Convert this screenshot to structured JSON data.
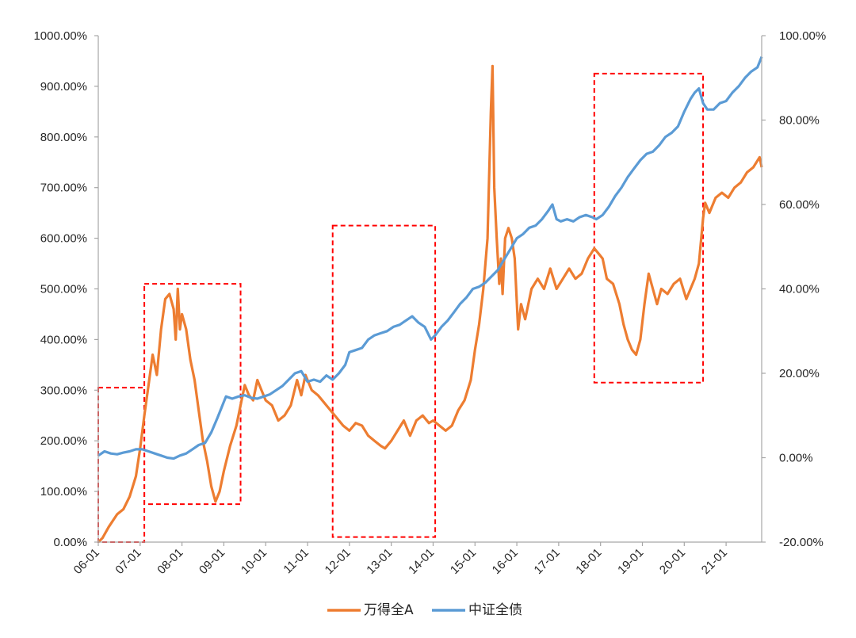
{
  "chart_data": {
    "type": "line",
    "x_tick_labels": [
      "06-01",
      "07-01",
      "08-01",
      "09-01",
      "10-01",
      "11-01",
      "12-01",
      "13-01",
      "14-01",
      "15-01",
      "16-01",
      "17-01",
      "18-01",
      "19-01",
      "20-01",
      "21-01"
    ],
    "y_left_tick_labels": [
      "0.00%",
      "100.00%",
      "200.00%",
      "300.00%",
      "400.00%",
      "500.00%",
      "600.00%",
      "700.00%",
      "800.00%",
      "900.00%",
      "1000.00%"
    ],
    "y_right_tick_labels": [
      "-20.00%",
      "0.00%",
      "20.00%",
      "40.00%",
      "60.00%",
      "80.00%",
      "100.00%"
    ],
    "y_left_range": [
      0,
      1000
    ],
    "y_right_range": [
      -20,
      100
    ],
    "x_range": [
      2006.0,
      2021.85
    ],
    "grid": false,
    "legend_position": "bottom-center",
    "series": [
      {
        "name": "万得全A",
        "axis": "left",
        "color": "#ED7D31",
        "points": [
          [
            2006.0,
            0
          ],
          [
            2006.1,
            8
          ],
          [
            2006.25,
            30
          ],
          [
            2006.45,
            55
          ],
          [
            2006.6,
            65
          ],
          [
            2006.75,
            90
          ],
          [
            2006.9,
            130
          ],
          [
            2007.0,
            185
          ],
          [
            2007.1,
            250
          ],
          [
            2007.2,
            310
          ],
          [
            2007.3,
            370
          ],
          [
            2007.4,
            330
          ],
          [
            2007.5,
            420
          ],
          [
            2007.6,
            480
          ],
          [
            2007.7,
            490
          ],
          [
            2007.8,
            460
          ],
          [
            2007.85,
            400
          ],
          [
            2007.9,
            500
          ],
          [
            2007.95,
            420
          ],
          [
            2008.0,
            450
          ],
          [
            2008.1,
            420
          ],
          [
            2008.2,
            360
          ],
          [
            2008.3,
            320
          ],
          [
            2008.4,
            260
          ],
          [
            2008.5,
            200
          ],
          [
            2008.6,
            160
          ],
          [
            2008.7,
            110
          ],
          [
            2008.8,
            80
          ],
          [
            2008.9,
            100
          ],
          [
            2009.0,
            140
          ],
          [
            2009.15,
            190
          ],
          [
            2009.3,
            230
          ],
          [
            2009.4,
            270
          ],
          [
            2009.5,
            310
          ],
          [
            2009.6,
            290
          ],
          [
            2009.7,
            280
          ],
          [
            2009.8,
            320
          ],
          [
            2009.9,
            300
          ],
          [
            2010.0,
            280
          ],
          [
            2010.15,
            270
          ],
          [
            2010.3,
            240
          ],
          [
            2010.45,
            250
          ],
          [
            2010.6,
            270
          ],
          [
            2010.75,
            320
          ],
          [
            2010.85,
            290
          ],
          [
            2010.95,
            330
          ],
          [
            2011.1,
            300
          ],
          [
            2011.25,
            290
          ],
          [
            2011.4,
            275
          ],
          [
            2011.55,
            260
          ],
          [
            2011.7,
            245
          ],
          [
            2011.85,
            230
          ],
          [
            2012.0,
            220
          ],
          [
            2012.15,
            235
          ],
          [
            2012.3,
            230
          ],
          [
            2012.45,
            210
          ],
          [
            2012.6,
            200
          ],
          [
            2012.75,
            190
          ],
          [
            2012.85,
            185
          ],
          [
            2013.0,
            200
          ],
          [
            2013.15,
            220
          ],
          [
            2013.3,
            240
          ],
          [
            2013.45,
            210
          ],
          [
            2013.6,
            240
          ],
          [
            2013.75,
            250
          ],
          [
            2013.9,
            235
          ],
          [
            2014.0,
            240
          ],
          [
            2014.15,
            230
          ],
          [
            2014.3,
            220
          ],
          [
            2014.45,
            230
          ],
          [
            2014.6,
            260
          ],
          [
            2014.75,
            280
          ],
          [
            2014.9,
            320
          ],
          [
            2015.0,
            380
          ],
          [
            2015.1,
            430
          ],
          [
            2015.2,
            500
          ],
          [
            2015.3,
            600
          ],
          [
            2015.38,
            850
          ],
          [
            2015.42,
            940
          ],
          [
            2015.46,
            700
          ],
          [
            2015.52,
            600
          ],
          [
            2015.58,
            510
          ],
          [
            2015.62,
            560
          ],
          [
            2015.66,
            490
          ],
          [
            2015.72,
            600
          ],
          [
            2015.8,
            620
          ],
          [
            2015.88,
            600
          ],
          [
            2015.95,
            560
          ],
          [
            2016.03,
            420
          ],
          [
            2016.1,
            470
          ],
          [
            2016.2,
            440
          ],
          [
            2016.35,
            500
          ],
          [
            2016.5,
            520
          ],
          [
            2016.65,
            500
          ],
          [
            2016.8,
            540
          ],
          [
            2016.95,
            500
          ],
          [
            2017.1,
            520
          ],
          [
            2017.25,
            540
          ],
          [
            2017.4,
            520
          ],
          [
            2017.55,
            530
          ],
          [
            2017.7,
            560
          ],
          [
            2017.85,
            580
          ],
          [
            2017.95,
            570
          ],
          [
            2018.05,
            560
          ],
          [
            2018.15,
            520
          ],
          [
            2018.3,
            510
          ],
          [
            2018.45,
            470
          ],
          [
            2018.55,
            430
          ],
          [
            2018.65,
            400
          ],
          [
            2018.75,
            380
          ],
          [
            2018.85,
            370
          ],
          [
            2018.95,
            400
          ],
          [
            2019.05,
            470
          ],
          [
            2019.15,
            530
          ],
          [
            2019.25,
            500
          ],
          [
            2019.35,
            470
          ],
          [
            2019.45,
            500
          ],
          [
            2019.6,
            490
          ],
          [
            2019.75,
            510
          ],
          [
            2019.9,
            520
          ],
          [
            2020.05,
            480
          ],
          [
            2020.15,
            500
          ],
          [
            2020.25,
            520
          ],
          [
            2020.35,
            550
          ],
          [
            2020.45,
            640
          ],
          [
            2020.5,
            670
          ],
          [
            2020.6,
            650
          ],
          [
            2020.75,
            680
          ],
          [
            2020.9,
            690
          ],
          [
            2021.05,
            680
          ],
          [
            2021.2,
            700
          ],
          [
            2021.35,
            710
          ],
          [
            2021.5,
            730
          ],
          [
            2021.65,
            740
          ],
          [
            2021.8,
            760
          ],
          [
            2021.85,
            740
          ]
        ]
      },
      {
        "name": "中证全债",
        "axis": "right",
        "color": "#5B9BD5",
        "points": [
          [
            2006.0,
            0.5
          ],
          [
            2006.15,
            1.5
          ],
          [
            2006.3,
            1.0
          ],
          [
            2006.45,
            0.8
          ],
          [
            2006.6,
            1.2
          ],
          [
            2006.75,
            1.5
          ],
          [
            2006.9,
            2.0
          ],
          [
            2007.05,
            2.0
          ],
          [
            2007.2,
            1.5
          ],
          [
            2007.35,
            1.0
          ],
          [
            2007.5,
            0.5
          ],
          [
            2007.65,
            0.0
          ],
          [
            2007.8,
            -0.2
          ],
          [
            2007.95,
            0.5
          ],
          [
            2008.1,
            1.0
          ],
          [
            2008.25,
            2.0
          ],
          [
            2008.4,
            3.0
          ],
          [
            2008.55,
            3.5
          ],
          [
            2008.7,
            6.0
          ],
          [
            2008.85,
            9.5
          ],
          [
            2008.95,
            12.0
          ],
          [
            2009.05,
            14.5
          ],
          [
            2009.2,
            14.0
          ],
          [
            2009.35,
            14.5
          ],
          [
            2009.5,
            14.8
          ],
          [
            2009.65,
            14.2
          ],
          [
            2009.8,
            14.0
          ],
          [
            2009.95,
            14.5
          ],
          [
            2010.1,
            15.0
          ],
          [
            2010.25,
            16.0
          ],
          [
            2010.4,
            17.0
          ],
          [
            2010.55,
            18.5
          ],
          [
            2010.7,
            20.0
          ],
          [
            2010.85,
            20.5
          ],
          [
            2011.0,
            18.0
          ],
          [
            2011.15,
            18.5
          ],
          [
            2011.3,
            18.0
          ],
          [
            2011.45,
            19.5
          ],
          [
            2011.6,
            18.5
          ],
          [
            2011.75,
            20.0
          ],
          [
            2011.9,
            22.0
          ],
          [
            2012.0,
            25.0
          ],
          [
            2012.15,
            25.5
          ],
          [
            2012.3,
            26.0
          ],
          [
            2012.45,
            28.0
          ],
          [
            2012.6,
            29.0
          ],
          [
            2012.75,
            29.5
          ],
          [
            2012.9,
            30.0
          ],
          [
            2013.05,
            31.0
          ],
          [
            2013.2,
            31.5
          ],
          [
            2013.35,
            32.5
          ],
          [
            2013.5,
            33.5
          ],
          [
            2013.65,
            32.0
          ],
          [
            2013.8,
            31.0
          ],
          [
            2013.95,
            28.0
          ],
          [
            2014.05,
            29.0
          ],
          [
            2014.2,
            31.0
          ],
          [
            2014.35,
            32.5
          ],
          [
            2014.5,
            34.5
          ],
          [
            2014.65,
            36.5
          ],
          [
            2014.8,
            38.0
          ],
          [
            2014.95,
            40.0
          ],
          [
            2015.1,
            40.5
          ],
          [
            2015.25,
            41.5
          ],
          [
            2015.4,
            43.0
          ],
          [
            2015.55,
            44.5
          ],
          [
            2015.7,
            47.0
          ],
          [
            2015.85,
            49.5
          ],
          [
            2016.0,
            52.0
          ],
          [
            2016.15,
            53.0
          ],
          [
            2016.3,
            54.5
          ],
          [
            2016.45,
            55.0
          ],
          [
            2016.6,
            56.5
          ],
          [
            2016.75,
            58.5
          ],
          [
            2016.85,
            60.0
          ],
          [
            2016.95,
            56.5
          ],
          [
            2017.05,
            56.0
          ],
          [
            2017.2,
            56.5
          ],
          [
            2017.35,
            56.0
          ],
          [
            2017.5,
            57.0
          ],
          [
            2017.65,
            57.5
          ],
          [
            2017.8,
            57.0
          ],
          [
            2017.9,
            56.5
          ],
          [
            2018.05,
            57.5
          ],
          [
            2018.2,
            59.5
          ],
          [
            2018.35,
            62.0
          ],
          [
            2018.5,
            64.0
          ],
          [
            2018.65,
            66.5
          ],
          [
            2018.8,
            68.5
          ],
          [
            2018.95,
            70.5
          ],
          [
            2019.1,
            72.0
          ],
          [
            2019.25,
            72.5
          ],
          [
            2019.4,
            74.0
          ],
          [
            2019.55,
            76.0
          ],
          [
            2019.7,
            77.0
          ],
          [
            2019.85,
            78.5
          ],
          [
            2020.0,
            82.0
          ],
          [
            2020.15,
            85.0
          ],
          [
            2020.25,
            86.5
          ],
          [
            2020.35,
            87.5
          ],
          [
            2020.45,
            84.0
          ],
          [
            2020.55,
            82.5
          ],
          [
            2020.7,
            82.5
          ],
          [
            2020.85,
            84.0
          ],
          [
            2021.0,
            84.5
          ],
          [
            2021.15,
            86.5
          ],
          [
            2021.3,
            88.0
          ],
          [
            2021.45,
            90.0
          ],
          [
            2021.6,
            91.5
          ],
          [
            2021.75,
            92.5
          ],
          [
            2021.85,
            95.0
          ]
        ]
      }
    ],
    "annotations": [
      {
        "type": "dashed-box",
        "color": "#FF0000",
        "x": [
          2006.0,
          2007.1
        ],
        "y_left": [
          0,
          305
        ]
      },
      {
        "type": "dashed-box",
        "color": "#FF0000",
        "x": [
          2007.1,
          2009.4
        ],
        "y_left": [
          75,
          510
        ]
      },
      {
        "type": "dashed-box",
        "color": "#FF0000",
        "x": [
          2011.6,
          2014.05
        ],
        "y_left": [
          10,
          625
        ]
      },
      {
        "type": "dashed-box",
        "color": "#FF0000",
        "x": [
          2017.85,
          2020.45
        ],
        "y_left": [
          315,
          925
        ]
      }
    ]
  }
}
